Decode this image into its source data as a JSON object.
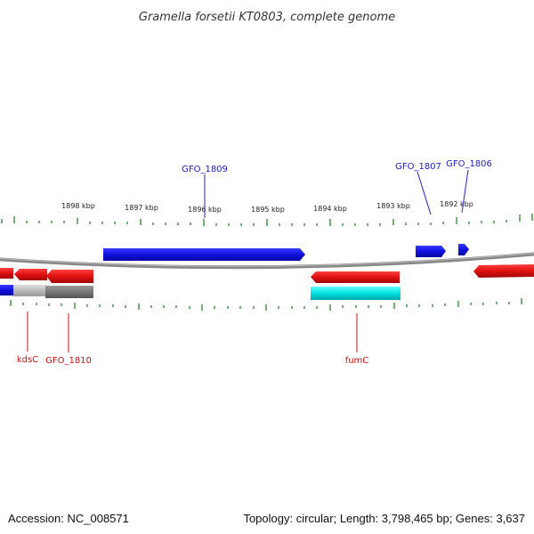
{
  "title": "Gramella forsetii KT0803, complete genome",
  "footer": {
    "accession": "Accession: NC_008571",
    "summary": "Topology: circular; Length: 3,798,465 bp; Genes: 3,637"
  },
  "ticks": [
    "1898 kbp",
    "1897 kbp",
    "1896 kbp",
    "1895 kbp",
    "1894 kbp",
    "1893 kbp",
    "1892 kbp"
  ],
  "gene_labels": {
    "top": [
      "GFO_1809",
      "GFO_1807",
      "GFO_1806"
    ],
    "bottom": [
      "kdsC",
      "GFO_1810",
      "fumC"
    ]
  },
  "colors": {
    "forward_gene": "#1010e0",
    "reverse_gene": "#e01010",
    "backbone": "#888888",
    "tick": "#1a7a1a",
    "cyan_feature": "#00e0e0",
    "gray_feature": "#777777"
  }
}
